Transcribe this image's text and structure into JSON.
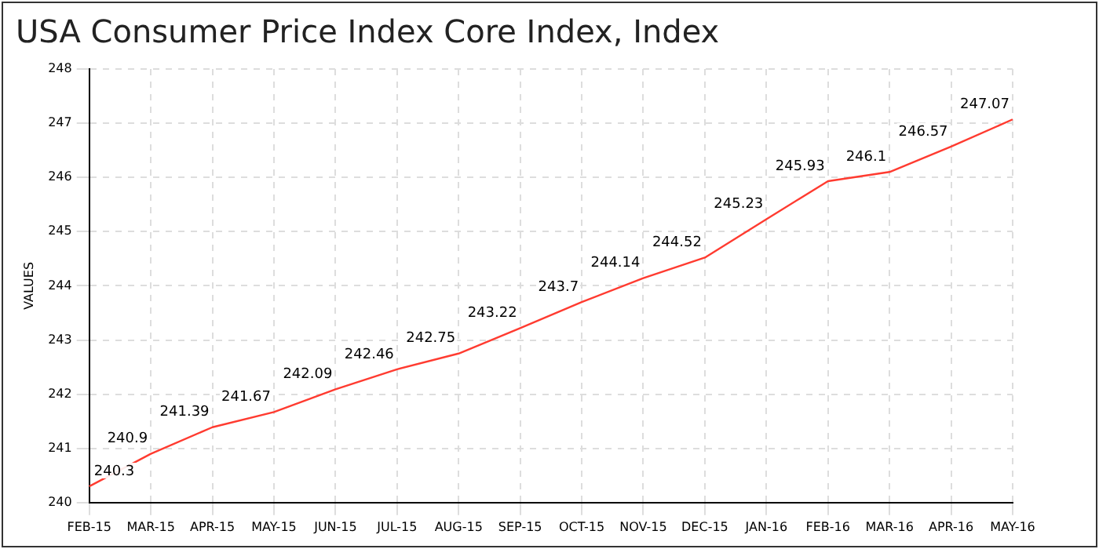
{
  "chart_data": {
    "type": "line",
    "title": "USA Consumer Price Index Core Index, Index",
    "ylabel": "VALUES",
    "categories": [
      "FEB-15",
      "MAR-15",
      "APR-15",
      "MAY-15",
      "JUN-15",
      "JUL-15",
      "AUG-15",
      "SEP-15",
      "OCT-15",
      "NOV-15",
      "DEC-15",
      "JAN-16",
      "FEB-16",
      "MAR-16",
      "APR-16",
      "MAY-16"
    ],
    "series": [
      {
        "color": "#ff3b30",
        "values": [
          240.3,
          240.9,
          241.39,
          241.67,
          242.09,
          242.46,
          242.75,
          243.22,
          243.7,
          244.14,
          244.52,
          245.23,
          245.93,
          246.1,
          246.57,
          247.07
        ]
      }
    ],
    "ylim": [
      240,
      248
    ],
    "yticks": [
      240,
      241,
      242,
      243,
      244,
      245,
      246,
      247,
      248
    ],
    "grid": true,
    "data_labels": true,
    "legend": false,
    "marker": "none",
    "line_style": "solid"
  }
}
